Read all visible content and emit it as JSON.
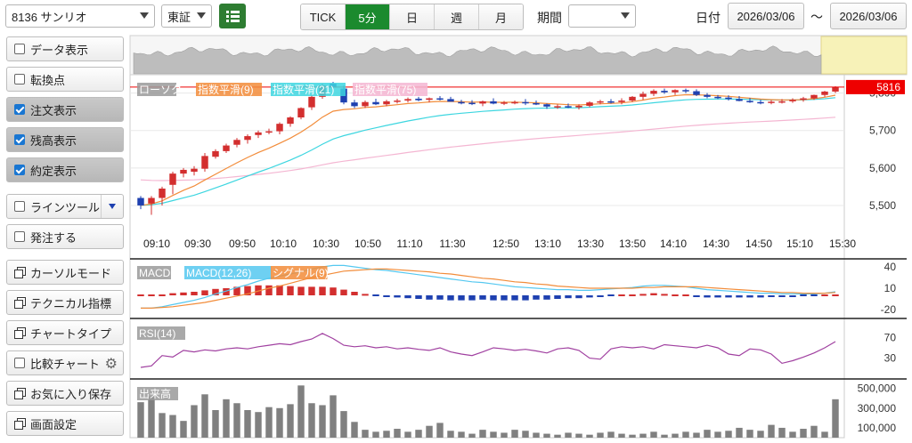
{
  "toolbar": {
    "stock": "8136 サンリオ",
    "market": "東証",
    "tabs": [
      "TICK",
      "5分",
      "日",
      "週",
      "月"
    ],
    "active_tab": "5分",
    "period_label": "期間",
    "period_value": "",
    "date_label": "日付",
    "date_from": "2026/03/06",
    "date_sep": "～",
    "date_to": "2026/03/06"
  },
  "sidebar": {
    "items": [
      {
        "label": "データ表示",
        "kind": "check",
        "checked": false
      },
      {
        "label": "転換点",
        "kind": "check",
        "checked": false
      },
      {
        "label": "注文表示",
        "kind": "check",
        "checked": true
      },
      {
        "label": "残高表示",
        "kind": "check",
        "checked": true
      },
      {
        "label": "約定表示",
        "kind": "check",
        "checked": true
      },
      {
        "label": "ラインツール",
        "kind": "check-dropdown",
        "checked": false
      },
      {
        "label": "発注する",
        "kind": "check",
        "checked": false
      },
      {
        "label": "カーソルモード",
        "kind": "icon"
      },
      {
        "label": "テクニカル指標",
        "kind": "icon"
      },
      {
        "label": "チャートタイプ",
        "kind": "icon"
      },
      {
        "label": "比較チャート",
        "kind": "check-gear",
        "checked": false
      },
      {
        "label": "お気に入り保存",
        "kind": "icon"
      },
      {
        "label": "画面設定",
        "kind": "icon"
      }
    ]
  },
  "colors": {
    "up": "#d32f2f",
    "down": "#1e40b0",
    "ema9": "#f28c3a",
    "ema21": "#3dd6e0",
    "ema75": "#f4b6d2",
    "macd_line": "#55c8f0",
    "signal_line": "#f28c3a",
    "rsi": "#a040a0",
    "volume": "#808080",
    "price_tag": "#ee0000"
  },
  "chart_data": {
    "type": "candlestick",
    "legend": [
      "ローソク",
      "指数平滑(9)",
      "指数平滑(21)",
      "指数平滑(75)"
    ],
    "last_price": "5816",
    "y_ticks": [
      {
        "v": 5800,
        "label": "5,800"
      },
      {
        "v": 5700,
        "label": "5,700"
      },
      {
        "v": 5600,
        "label": "5,600"
      },
      {
        "v": 5500,
        "label": "5,500"
      }
    ],
    "ylim": [
      5450,
      5830
    ],
    "x_labels": [
      "09:10",
      "09:30",
      "09:50",
      "10:10",
      "10:30",
      "10:50",
      "11:10",
      "11:30",
      "12:50",
      "13:10",
      "13:30",
      "13:50",
      "14:10",
      "14:30",
      "14:50",
      "15:10",
      "15:30"
    ],
    "candles": [
      [
        5520,
        5525,
        5490,
        5500
      ],
      [
        5505,
        5525,
        5475,
        5520
      ],
      [
        5520,
        5550,
        5500,
        5545
      ],
      [
        5555,
        5590,
        5530,
        5585
      ],
      [
        5585,
        5600,
        5575,
        5595
      ],
      [
        5590,
        5605,
        5580,
        5598
      ],
      [
        5598,
        5640,
        5590,
        5632
      ],
      [
        5630,
        5650,
        5625,
        5645
      ],
      [
        5645,
        5665,
        5640,
        5660
      ],
      [
        5662,
        5680,
        5655,
        5675
      ],
      [
        5675,
        5690,
        5665,
        5685
      ],
      [
        5688,
        5700,
        5680,
        5695
      ],
      [
        5695,
        5705,
        5690,
        5698
      ],
      [
        5698,
        5722,
        5690,
        5718
      ],
      [
        5718,
        5738,
        5710,
        5735
      ],
      [
        5735,
        5762,
        5730,
        5760
      ],
      [
        5762,
        5795,
        5755,
        5790
      ],
      [
        5790,
        5825,
        5785,
        5820
      ],
      [
        5825,
        5830,
        5805,
        5815
      ],
      [
        5812,
        5820,
        5770,
        5775
      ],
      [
        5775,
        5782,
        5760,
        5765
      ],
      [
        5765,
        5780,
        5760,
        5776
      ],
      [
        5776,
        5785,
        5768,
        5770
      ],
      [
        5770,
        5782,
        5765,
        5778
      ],
      [
        5778,
        5785,
        5772,
        5780
      ],
      [
        5780,
        5788,
        5775,
        5784
      ],
      [
        5785,
        5790,
        5778,
        5781
      ],
      [
        5782,
        5788,
        5775,
        5786
      ],
      [
        5786,
        5792,
        5780,
        5784
      ],
      [
        5784,
        5790,
        5778,
        5777
      ],
      [
        5776,
        5782,
        5770,
        5774
      ],
      [
        5774,
        5781,
        5768,
        5772
      ],
      [
        5772,
        5780,
        5765,
        5778
      ],
      [
        5778,
        5786,
        5770,
        5772
      ],
      [
        5772,
        5779,
        5768,
        5775
      ],
      [
        5775,
        5780,
        5770,
        5776
      ],
      [
        5776,
        5784,
        5768,
        5773
      ],
      [
        5773,
        5780,
        5768,
        5770
      ],
      [
        5770,
        5772,
        5758,
        5764
      ],
      [
        5765,
        5770,
        5758,
        5765
      ],
      [
        5765,
        5772,
        5760,
        5762
      ],
      [
        5762,
        5770,
        5756,
        5766
      ],
      [
        5766,
        5778,
        5762,
        5775
      ],
      [
        5775,
        5782,
        5770,
        5778
      ],
      [
        5778,
        5784,
        5772,
        5776
      ],
      [
        5776,
        5786,
        5770,
        5780
      ],
      [
        5780,
        5792,
        5776,
        5790
      ],
      [
        5790,
        5804,
        5782,
        5798
      ],
      [
        5798,
        5810,
        5792,
        5806
      ],
      [
        5806,
        5812,
        5798,
        5802
      ],
      [
        5802,
        5810,
        5795,
        5808
      ],
      [
        5808,
        5812,
        5800,
        5805
      ],
      [
        5805,
        5810,
        5792,
        5795
      ],
      [
        5795,
        5800,
        5786,
        5790
      ],
      [
        5790,
        5795,
        5784,
        5788
      ],
      [
        5788,
        5794,
        5780,
        5784
      ],
      [
        5784,
        5792,
        5778,
        5779
      ],
      [
        5779,
        5787,
        5774,
        5776
      ],
      [
        5776,
        5782,
        5770,
        5775
      ],
      [
        5775,
        5781,
        5770,
        5777
      ],
      [
        5777,
        5784,
        5772,
        5778
      ],
      [
        5778,
        5786,
        5774,
        5782
      ],
      [
        5782,
        5790,
        5777,
        5786
      ],
      [
        5786,
        5796,
        5782,
        5795
      ],
      [
        5795,
        5806,
        5790,
        5804
      ],
      [
        5804,
        5818,
        5800,
        5816
      ]
    ],
    "macd": {
      "legend": [
        "MACD",
        "MACD(12,26)",
        "シグナル(9)"
      ],
      "y_ticks": [
        {
          "v": 40,
          "label": "40"
        },
        {
          "v": 10,
          "label": "10"
        },
        {
          "v": -20,
          "label": "-20"
        }
      ],
      "ylim": [
        -25,
        45
      ],
      "macd_line": [
        -18,
        -18,
        -16,
        -13,
        -10,
        -7,
        -3,
        2,
        6,
        11,
        15,
        20,
        24,
        27,
        30,
        33,
        37,
        40,
        42,
        42,
        40,
        38,
        36,
        35,
        33,
        31,
        29,
        27,
        25,
        23,
        21,
        19,
        18,
        16,
        14,
        12,
        11,
        10,
        9,
        8,
        8,
        7,
        7,
        8,
        9,
        10,
        11,
        13,
        14,
        14,
        13,
        12,
        10,
        8,
        7,
        6,
        5,
        4,
        3,
        3,
        2,
        2,
        2,
        2,
        3,
        5
      ],
      "signal_line": [
        -18,
        -18,
        -17,
        -16,
        -14,
        -12,
        -10,
        -7,
        -4,
        -1,
        2,
        6,
        10,
        13,
        17,
        21,
        25,
        28,
        31,
        34,
        35,
        36,
        37,
        37,
        36,
        35,
        34,
        33,
        31,
        30,
        28,
        26,
        24,
        23,
        21,
        19,
        18,
        16,
        15,
        13,
        12,
        11,
        10,
        10,
        10,
        10,
        10,
        11,
        11,
        12,
        12,
        12,
        12,
        11,
        10,
        9,
        8,
        7,
        6,
        5,
        4,
        4,
        3,
        3,
        3,
        4
      ]
    },
    "rsi": {
      "legend": [
        "RSI(14)"
      ],
      "y_ticks": [
        {
          "v": 70,
          "label": "70"
        },
        {
          "v": 30,
          "label": "30"
        }
      ],
      "ylim": [
        0,
        100
      ],
      "values": [
        12,
        15,
        35,
        32,
        45,
        42,
        46,
        44,
        48,
        50,
        48,
        52,
        55,
        58,
        56,
        62,
        67,
        78,
        68,
        55,
        52,
        54,
        50,
        52,
        48,
        50,
        47,
        45,
        50,
        42,
        38,
        35,
        42,
        50,
        48,
        45,
        47,
        44,
        40,
        48,
        50,
        45,
        30,
        28,
        48,
        52,
        50,
        52,
        48,
        56,
        54,
        52,
        50,
        55,
        50,
        38,
        35,
        48,
        46,
        38,
        20,
        25,
        32,
        40,
        50,
        62
      ]
    },
    "volume": {
      "legend": [
        "出来高"
      ],
      "y_ticks": [
        {
          "v": 500000,
          "label": "500,000"
        },
        {
          "v": 300000,
          "label": "300,000"
        },
        {
          "v": 100000,
          "label": "100,000"
        }
      ],
      "ylim": [
        0,
        560000
      ],
      "values": [
        360000,
        420000,
        250000,
        230000,
        170000,
        330000,
        440000,
        280000,
        390000,
        350000,
        280000,
        260000,
        310000,
        300000,
        340000,
        530000,
        350000,
        330000,
        430000,
        270000,
        160000,
        80000,
        60000,
        70000,
        90000,
        60000,
        80000,
        120000,
        150000,
        70000,
        60000,
        40000,
        80000,
        60000,
        50000,
        80000,
        70000,
        50000,
        40000,
        30000,
        50000,
        40000,
        30000,
        50000,
        60000,
        40000,
        30000,
        40000,
        60000,
        30000,
        40000,
        60000,
        50000,
        80000,
        60000,
        70000,
        100000,
        80000,
        70000,
        130000,
        100000,
        60000,
        90000,
        120000,
        60000,
        390000
      ]
    }
  }
}
